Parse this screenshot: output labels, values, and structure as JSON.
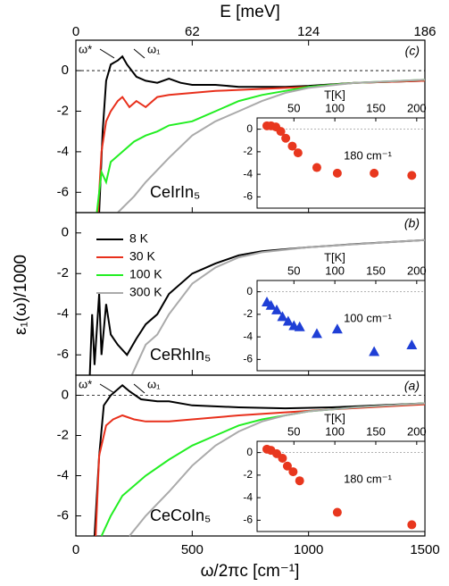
{
  "figure": {
    "xlabel": "ω/2πc [cm⁻¹]",
    "ylabel": "ε₁(ω)/1000",
    "xlim": [
      0,
      1500
    ],
    "xticks": [
      0,
      500,
      1000,
      1500
    ],
    "x2label": "E [meV]",
    "x2lim": [
      0,
      186
    ],
    "x2ticks": [
      0,
      62,
      124,
      186
    ],
    "legend": [
      {
        "name": "8 K",
        "color": "#000000"
      },
      {
        "name": "30 K",
        "color": "#e8301c"
      },
      {
        "name": "100 K",
        "color": "#22ee22"
      },
      {
        "name": "300 K",
        "color": "#aaaaaa"
      }
    ]
  },
  "chart_data": [
    {
      "type": "line",
      "panel_label": "(c)",
      "compound": "CeIrIn₅",
      "ylim": [
        -7,
        1.5
      ],
      "yticks": [
        0,
        -2,
        -4,
        -6
      ],
      "zero_line": true,
      "annotations": [
        "ω*",
        "ω₁"
      ],
      "series": [
        {
          "color": "#000000",
          "x": [
            100,
            115,
            130,
            150,
            180,
            200,
            220,
            260,
            300,
            350,
            400,
            450,
            500,
            600,
            700,
            800,
            900,
            1000,
            1200,
            1500
          ],
          "values": [
            -7,
            -3,
            -0.5,
            0.3,
            0.5,
            0.7,
            0.3,
            -0.3,
            -0.5,
            -0.6,
            -0.4,
            -0.6,
            -0.7,
            -0.7,
            -0.8,
            -0.8,
            -0.8,
            -0.75,
            -0.6,
            -0.5
          ]
        },
        {
          "color": "#e8301c",
          "x": [
            95,
            110,
            130,
            150,
            180,
            200,
            230,
            260,
            300,
            350,
            400,
            500,
            600,
            800,
            1000,
            1200,
            1500
          ],
          "values": [
            -7,
            -4,
            -2.5,
            -2,
            -1.5,
            -1.3,
            -1.8,
            -1.5,
            -1.8,
            -1.3,
            -1.2,
            -1.1,
            -1,
            -0.9,
            -0.8,
            -0.6,
            -0.5
          ]
        },
        {
          "color": "#22ee22",
          "x": [
            90,
            110,
            130,
            150,
            200,
            250,
            300,
            350,
            400,
            500,
            600,
            700,
            800,
            1000,
            1200,
            1500
          ],
          "values": [
            -7,
            -5,
            -5.5,
            -4.5,
            -4,
            -3.5,
            -3.2,
            -3,
            -2.7,
            -2.5,
            -2,
            -1.5,
            -1.2,
            -0.8,
            -0.6,
            -0.45
          ]
        },
        {
          "color": "#aaaaaa",
          "x": [
            180,
            250,
            300,
            400,
            500,
            600,
            700,
            800,
            900,
            1000,
            1200,
            1500
          ],
          "values": [
            -7,
            -6.2,
            -5.5,
            -4.3,
            -3.2,
            -2.5,
            -2,
            -1.5,
            -1.1,
            -0.85,
            -0.6,
            -0.45
          ]
        }
      ],
      "inset": {
        "type": "scatter",
        "marker": "circle",
        "color": "#e8371e",
        "xlabel": "T[K]",
        "note": "180 cm⁻¹",
        "xlim": [
          5,
          210
        ],
        "xticks": [
          50,
          100,
          150,
          200
        ],
        "ylim": [
          -7,
          1
        ],
        "yticks": [
          0,
          -2,
          -4,
          -6
        ],
        "x": [
          17,
          22,
          28,
          34,
          40,
          48,
          55,
          78,
          103,
          148,
          194
        ],
        "values": [
          0.3,
          0.3,
          0.2,
          -0.2,
          -0.8,
          -1.5,
          -2.1,
          -3.4,
          -3.9,
          -3.9,
          -4.1
        ]
      }
    },
    {
      "type": "line",
      "panel_label": "(b)",
      "compound": "CeRhIn₅",
      "ylim": [
        -7,
        1
      ],
      "yticks": [
        0,
        -2,
        -4,
        -6
      ],
      "zero_line": false,
      "series": [
        {
          "color": "#000000",
          "x": [
            60,
            70,
            80,
            100,
            110,
            130,
            150,
            180,
            220,
            260,
            300,
            350,
            400,
            500,
            600,
            700,
            800,
            1000,
            1200,
            1500
          ],
          "values": [
            -7,
            -4,
            -6.5,
            -3,
            -6,
            -3.5,
            -5,
            -5.5,
            -6,
            -5.2,
            -4.5,
            -4,
            -3,
            -2,
            -1.5,
            -1.1,
            -0.9,
            -0.7,
            -0.55,
            -0.35
          ]
        },
        {
          "color": "#aaaaaa",
          "x": [
            240,
            300,
            350,
            400,
            500,
            600,
            700,
            800,
            1000,
            1500
          ],
          "values": [
            -7,
            -5.5,
            -5,
            -4,
            -2.5,
            -1.7,
            -1.2,
            -0.95,
            -0.7,
            -0.35
          ]
        }
      ],
      "inset": {
        "type": "scatter",
        "marker": "triangle",
        "color": "#1f3fd6",
        "xlabel": "T[K]",
        "note": "100 cm⁻¹",
        "xlim": [
          5,
          210
        ],
        "xticks": [
          50,
          100,
          150,
          200
        ],
        "ylim": [
          -7,
          1
        ],
        "yticks": [
          0,
          -2,
          -4,
          -6
        ],
        "x": [
          17,
          22,
          29,
          36,
          43,
          50,
          57,
          78,
          103,
          148,
          194
        ],
        "values": [
          -0.9,
          -1.2,
          -1.6,
          -2.2,
          -2.6,
          -3,
          -3.1,
          -3.7,
          -3.3,
          -5.3,
          -4.7
        ]
      }
    },
    {
      "type": "line",
      "panel_label": "(a)",
      "compound": "CeCoIn₅",
      "ylim": [
        -7,
        1
      ],
      "yticks": [
        0,
        -2,
        -4,
        -6
      ],
      "zero_line": true,
      "annotations": [
        "ω*",
        "ω₁"
      ],
      "series": [
        {
          "color": "#000000",
          "x": [
            80,
            100,
            120,
            150,
            180,
            200,
            230,
            280,
            350,
            400,
            500,
            700,
            900,
            1100,
            1300,
            1500
          ],
          "values": [
            -7,
            -3,
            -0.5,
            0,
            0.3,
            0.5,
            0.2,
            -0.2,
            -0.3,
            -0.3,
            -0.5,
            -0.6,
            -0.65,
            -0.6,
            -0.5,
            -0.4
          ]
        },
        {
          "color": "#e8301c",
          "x": [
            85,
            100,
            130,
            160,
            200,
            250,
            300,
            400,
            500,
            700,
            900,
            1100,
            1500
          ],
          "values": [
            -7,
            -3,
            -1.5,
            -1.2,
            -1,
            -1.2,
            -1.3,
            -1.3,
            -1.2,
            -1,
            -0.85,
            -0.7,
            -0.45
          ]
        },
        {
          "color": "#22ee22",
          "x": [
            110,
            150,
            200,
            300,
            400,
            500,
            600,
            700,
            800,
            1000,
            1200,
            1500
          ],
          "values": [
            -7,
            -6,
            -5,
            -4,
            -3.2,
            -2.5,
            -2,
            -1.5,
            -1.2,
            -0.8,
            -0.6,
            -0.4
          ]
        },
        {
          "color": "#aaaaaa",
          "x": [
            230,
            300,
            400,
            500,
            600,
            700,
            800,
            900,
            1000,
            1200,
            1500
          ],
          "values": [
            -7,
            -6,
            -4.8,
            -3.5,
            -2.5,
            -1.8,
            -1.3,
            -1,
            -0.8,
            -0.6,
            -0.4
          ]
        }
      ],
      "inset": {
        "type": "scatter",
        "marker": "circle",
        "color": "#e8371e",
        "xlabel": "T[K]",
        "note": "180 cm⁻¹",
        "xlim": [
          5,
          210
        ],
        "xticks": [
          50,
          100,
          150,
          200
        ],
        "ylim": [
          -7,
          1
        ],
        "yticks": [
          0,
          -2,
          -4,
          -6
        ],
        "x": [
          17,
          22,
          29,
          36,
          42,
          49,
          57,
          103,
          194
        ],
        "values": [
          0.3,
          0.2,
          -0.1,
          -0.5,
          -1.2,
          -1.7,
          -2.5,
          -5.3,
          -6.4
        ]
      }
    }
  ]
}
